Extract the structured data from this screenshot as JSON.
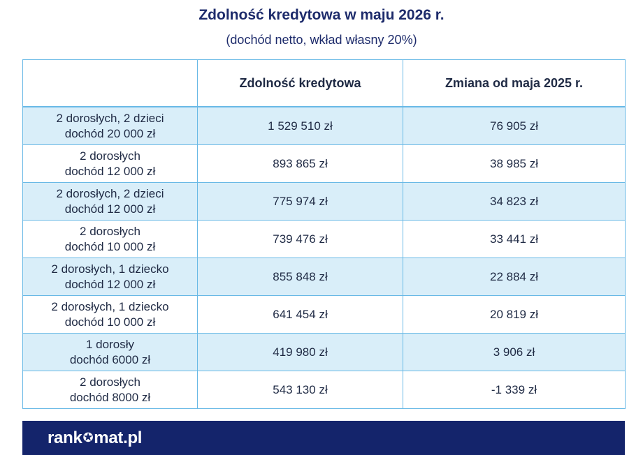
{
  "title": "Zdolność kredytowa w maju 2026 r.",
  "subtitle": "(dochód netto, wkład własny 20%)",
  "table": {
    "headers": [
      "",
      "Zdolność kredytowa",
      "Zmiana od maja 2025 r."
    ],
    "rows": [
      {
        "line1": "2 dorosłych, 2 dzieci",
        "line2": "dochód 20 000 zł",
        "capacity": "1 529 510 zł",
        "change": "76 905 zł"
      },
      {
        "line1": "2 dorosłych",
        "line2": "dochód 12 000 zł",
        "capacity": "893 865 zł",
        "change": "38 985 zł"
      },
      {
        "line1": "2 dorosłych, 2 dzieci",
        "line2": "dochód 12 000 zł",
        "capacity": "775 974 zł",
        "change": "34 823 zł"
      },
      {
        "line1": "2 dorosłych",
        "line2": "dochód 10 000 zł",
        "capacity": "739 476 zł",
        "change": "33 441 zł"
      },
      {
        "line1": "2 dorosłych, 1 dziecko",
        "line2": "dochód 12 000 zł",
        "capacity": "855 848 zł",
        "change": "22 884 zł"
      },
      {
        "line1": "2 dorosłych, 1 dziecko",
        "line2": "dochód 10 000 zł",
        "capacity": "641 454 zł",
        "change": "20 819 zł"
      },
      {
        "line1": "1 dorosły",
        "line2": "dochód 6000 zł",
        "capacity": "419 980 zł",
        "change": "3 906 zł"
      },
      {
        "line1": "2 dorosłych",
        "line2": "dochód 8000 zł",
        "capacity": "543 130 zł",
        "change": "-1 339 zł"
      }
    ]
  },
  "footer": {
    "logo_part1": "rank",
    "logo_part2": "mat.pl",
    "logo_icon": "star-icon"
  },
  "colors": {
    "title": "#1d2b6b",
    "border": "#69b9e6",
    "row_shade": "#d9eef9",
    "footer_bg": "#14246b"
  }
}
